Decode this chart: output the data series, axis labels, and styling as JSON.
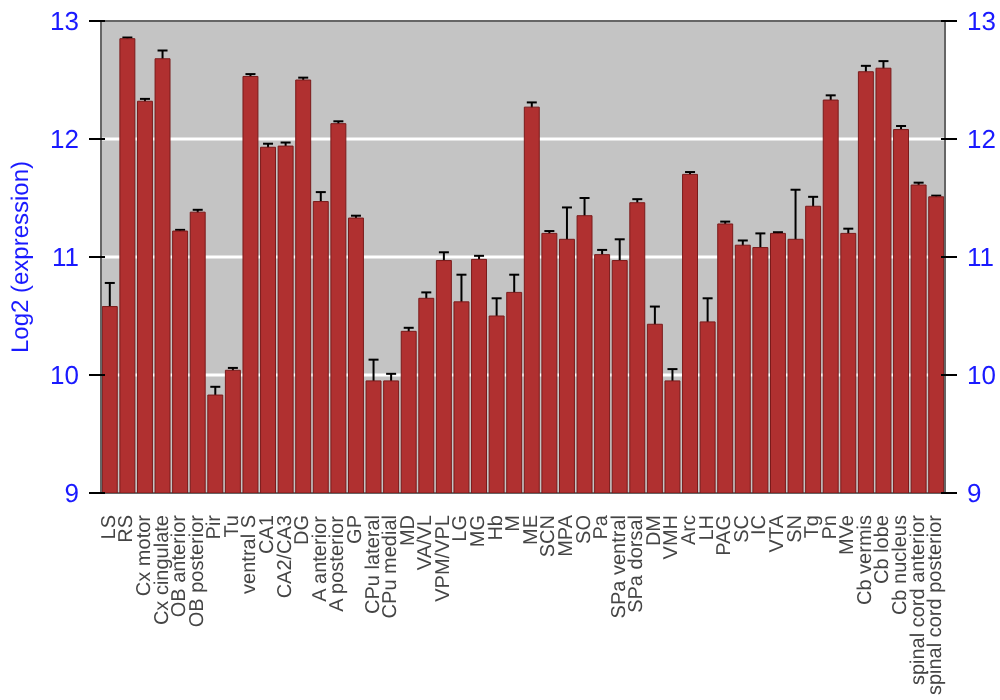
{
  "chart_data": {
    "type": "bar",
    "ylabel": "Log2 (expression)",
    "categories": [
      "LS",
      "RS",
      "Cx motor",
      "Cx cingulate",
      "OB anterior",
      "OB posterior",
      "Pir",
      "Tu",
      "ventral S",
      "CA1",
      "CA2/CA3",
      "DG",
      "A anterior",
      "A posterior",
      "GP",
      "CPu lateral",
      "CPu medial",
      "MD",
      "VA/VL",
      "VPM/VPL",
      "LG",
      "MG",
      "Hb",
      "M",
      "ME",
      "SCN",
      "MPA",
      "SO",
      "Pa",
      "SPa ventral",
      "SPa dorsal",
      "DM",
      "VMH",
      "Arc",
      "LH",
      "PAG",
      "SC",
      "IC",
      "VTA",
      "SN",
      "Tg",
      "Pn",
      "MVe",
      "Cb vermis",
      "Cb lobe",
      "Cb nucleus",
      "spinal cord anterior",
      "spinal cord posterior"
    ],
    "values": [
      10.58,
      12.85,
      12.32,
      12.68,
      11.22,
      11.38,
      9.83,
      10.04,
      12.53,
      11.93,
      11.94,
      12.5,
      11.47,
      12.13,
      11.33,
      9.95,
      9.95,
      10.37,
      10.65,
      10.97,
      10.62,
      10.98,
      10.5,
      10.7,
      12.27,
      11.2,
      11.15,
      11.35,
      11.02,
      10.97,
      11.46,
      10.43,
      9.95,
      11.7,
      10.45,
      11.28,
      11.1,
      11.08,
      11.2,
      11.15,
      11.43,
      12.33,
      11.2,
      12.57,
      12.6,
      12.08,
      11.61,
      11.51
    ],
    "errors": [
      0.2,
      0.01,
      0.02,
      0.07,
      0.01,
      0.02,
      0.07,
      0.02,
      0.02,
      0.03,
      0.03,
      0.02,
      0.08,
      0.02,
      0.02,
      0.18,
      0.06,
      0.03,
      0.05,
      0.07,
      0.23,
      0.03,
      0.15,
      0.15,
      0.04,
      0.02,
      0.27,
      0.15,
      0.04,
      0.18,
      0.03,
      0.15,
      0.1,
      0.02,
      0.2,
      0.02,
      0.04,
      0.12,
      0.01,
      0.42,
      0.08,
      0.04,
      0.04,
      0.05,
      0.06,
      0.03,
      0.02,
      0.01
    ],
    "color": "#b03030",
    "ylim": [
      9,
      13
    ],
    "yticks": [
      9,
      10,
      11,
      12,
      13
    ],
    "y2lim": [
      9,
      13
    ],
    "y2ticks": [
      9,
      10,
      11,
      12,
      13
    ],
    "grid": "y"
  }
}
